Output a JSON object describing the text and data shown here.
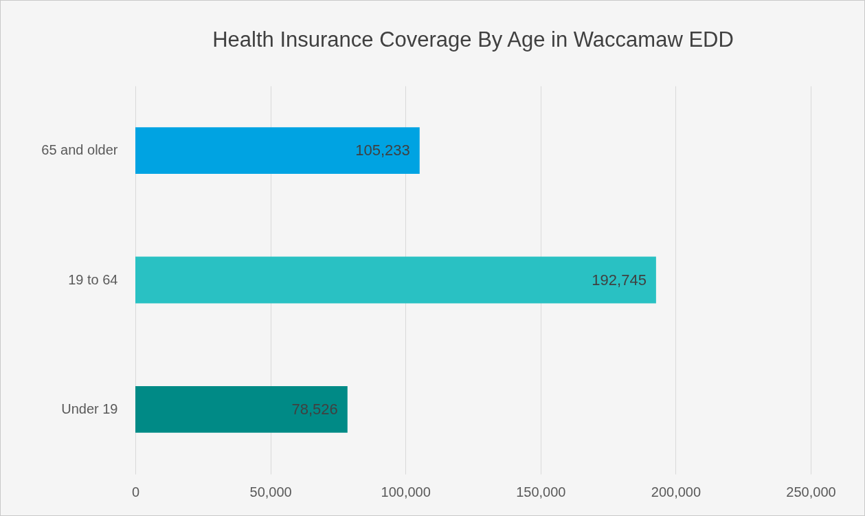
{
  "chart_data": {
    "type": "bar",
    "orientation": "horizontal",
    "title": "Health Insurance  Coverage By Age in Waccamaw EDD",
    "categories": [
      "65 and older",
      "19 to 64",
      "Under 19"
    ],
    "values": [
      105233,
      192745,
      78526
    ],
    "value_labels": [
      "105,233",
      "192,745",
      "78,526"
    ],
    "colors": [
      "#00a3e2",
      "#29c1c3",
      "#008a86"
    ],
    "xlim": [
      0,
      250000
    ],
    "xticks": [
      0,
      {
        "value": 50000,
        "label": "50,000"
      },
      {
        "value": 100000,
        "label": "100,000"
      },
      {
        "value": 150000,
        "label": "150,000"
      },
      {
        "value": 200000,
        "label": "200,000"
      },
      {
        "value": 250000,
        "label": "250,000"
      }
    ],
    "grid": "x",
    "legend": false
  }
}
